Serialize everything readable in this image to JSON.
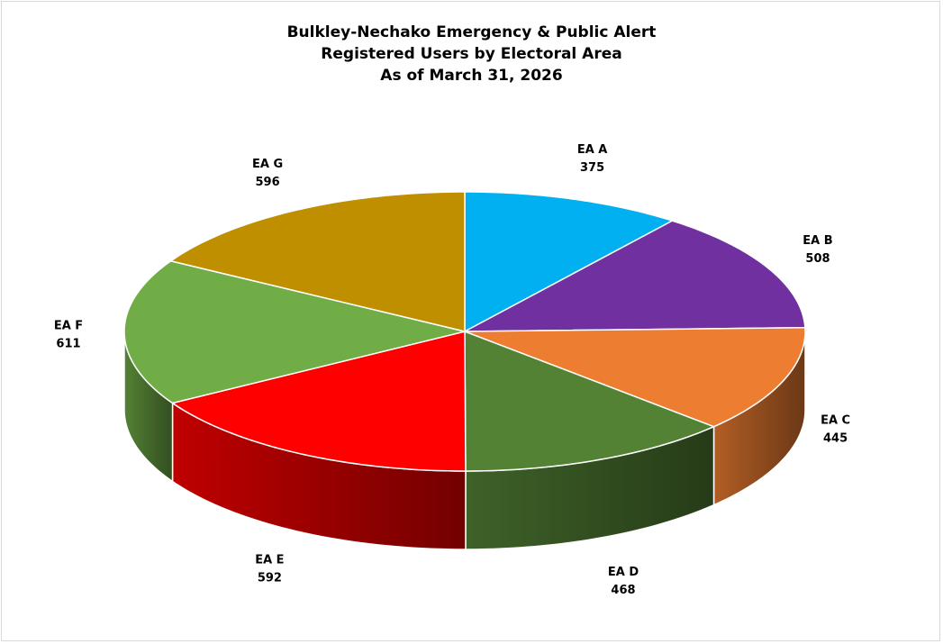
{
  "chart_data": {
    "type": "pie",
    "title": [
      "Bulkley-Nechako Emergency & Public Alert",
      "Registered Users by Electoral Area",
      "As of March 31, 2026"
    ],
    "categories": [
      "EA A",
      "EA B",
      "EA C",
      "EA D",
      "EA E",
      "EA F",
      "EA G"
    ],
    "values": [
      375,
      508,
      445,
      468,
      592,
      611,
      596
    ],
    "colors": [
      "#00b0f0",
      "#7030a0",
      "#ed7d31",
      "#548235",
      "#ff0000",
      "#70ad47",
      "#bf8f00"
    ],
    "style": "3d",
    "legend": "none",
    "data_labels": "category and value"
  }
}
